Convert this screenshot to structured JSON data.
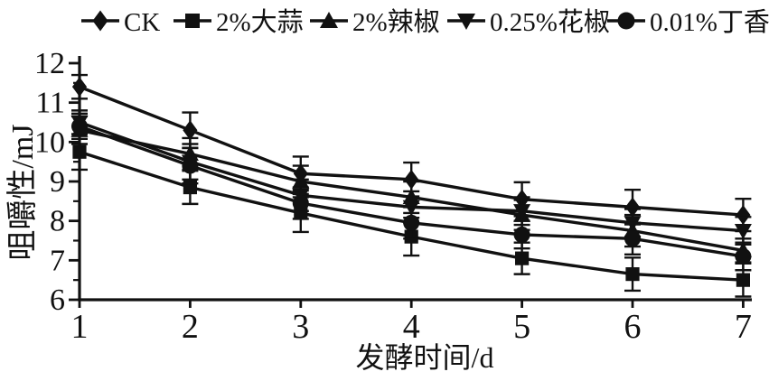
{
  "chart_data": {
    "type": "line",
    "title": "",
    "xlabel": "发酵时间/d",
    "ylabel": "咀嚼性/mJ",
    "x": [
      1,
      2,
      3,
      4,
      5,
      6,
      7
    ],
    "xlim": [
      1,
      7
    ],
    "ylim": [
      6,
      12
    ],
    "y_major_step": 1,
    "y_minor_step": 0.5,
    "grid": false,
    "legend_position": "top",
    "line_color": "#111111",
    "series": [
      {
        "name": "CK",
        "marker": "diamond",
        "values": [
          11.4,
          10.3,
          9.2,
          9.05,
          8.55,
          8.35,
          8.15
        ],
        "errors": [
          0.3,
          0.45,
          0.43,
          0.43,
          0.43,
          0.44,
          0.41
        ]
      },
      {
        "name": "2%大蒜",
        "marker": "square",
        "values": [
          9.75,
          8.85,
          8.2,
          7.6,
          7.05,
          6.65,
          6.5
        ],
        "errors": [
          0.45,
          0.42,
          0.48,
          0.48,
          0.4,
          0.42,
          0.42
        ]
      },
      {
        "name": "2%辣椒",
        "marker": "triangle-up",
        "values": [
          10.3,
          9.7,
          9.0,
          8.6,
          8.15,
          7.75,
          7.25
        ],
        "errors": [
          0.35,
          0.4,
          0.4,
          0.4,
          0.38,
          0.4,
          0.3
        ]
      },
      {
        "name": "0.25%花椒",
        "marker": "triangle-down",
        "values": [
          10.5,
          9.5,
          8.65,
          8.35,
          8.25,
          7.95,
          7.75
        ],
        "errors": [
          0.3,
          0.45,
          0.4,
          0.4,
          0.35,
          0.35,
          0.35
        ]
      },
      {
        "name": "0.01%丁香",
        "marker": "circle",
        "values": [
          10.4,
          9.4,
          8.45,
          7.95,
          7.65,
          7.55,
          7.1
        ],
        "errors": [
          0.32,
          0.45,
          0.4,
          0.4,
          0.35,
          0.4,
          0.35
        ]
      }
    ]
  }
}
